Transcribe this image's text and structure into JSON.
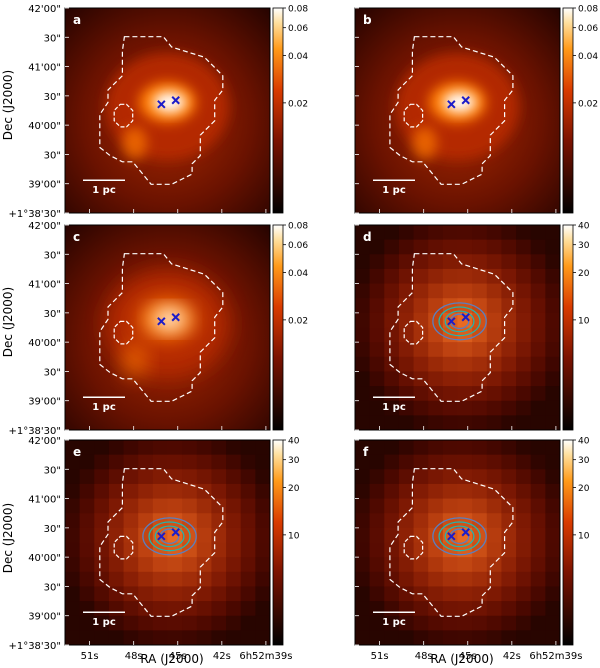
{
  "figure": {
    "ylabel": "Dec (J2000)",
    "xlabel": "RA (J2000)",
    "y_ticks": [
      "42'00\"",
      "30\"",
      "41'00\"",
      "30\"",
      "40'00\"",
      "30\"",
      "39'00\"",
      "+1°38'30\""
    ],
    "x_ticks": [
      "51s",
      "48s",
      "45s",
      "42s",
      "6h52m39s"
    ],
    "scale_bar_label": "1 pc"
  },
  "colors": {
    "map_dark": "#150000",
    "map_mid": "#b52a00",
    "map_hot": "#ff7a00",
    "map_peak": "#ffffff",
    "contour_line": "#ffffff",
    "cross_marker": "#1c1cc8",
    "contour_teal": "#26b3aa",
    "contour_blue": "#5a7fc0"
  },
  "panels": [
    {
      "label": "a",
      "colorbar_ticks": [
        "0.08",
        "0.06",
        "0.04",
        "0.02"
      ],
      "colorbar_values": [
        0.08,
        0.06,
        0.04,
        0.02
      ],
      "blur": 6,
      "pixelated": false,
      "contours": false
    },
    {
      "label": "b",
      "colorbar_ticks": [
        "0.08",
        "0.06",
        "0.04",
        "0.02"
      ],
      "colorbar_values": [
        0.08,
        0.06,
        0.04,
        0.02
      ],
      "blur": 6,
      "pixelated": false,
      "contours": false
    },
    {
      "label": "c",
      "colorbar_ticks": [
        "0.08",
        "0.06",
        "0.04",
        "0.02"
      ],
      "colorbar_values": [
        0.08,
        0.06,
        0.04,
        0.02
      ],
      "blur": 10,
      "pixelated": false,
      "contours": false
    },
    {
      "label": "d",
      "colorbar_ticks": [
        "40",
        "30",
        "20",
        "10"
      ],
      "colorbar_values": [
        40,
        30,
        20,
        10
      ],
      "blur": 10,
      "pixelated": true,
      "contours": true
    },
    {
      "label": "e",
      "colorbar_ticks": [
        "40",
        "30",
        "20",
        "10"
      ],
      "colorbar_values": [
        40,
        30,
        20,
        10
      ],
      "blur": 12,
      "pixelated": true,
      "contours": true
    },
    {
      "label": "f",
      "colorbar_ticks": [
        "40",
        "30",
        "20",
        "10"
      ],
      "colorbar_values": [
        40,
        30,
        20,
        10
      ],
      "blur": 12,
      "pixelated": true,
      "contours": true
    }
  ]
}
